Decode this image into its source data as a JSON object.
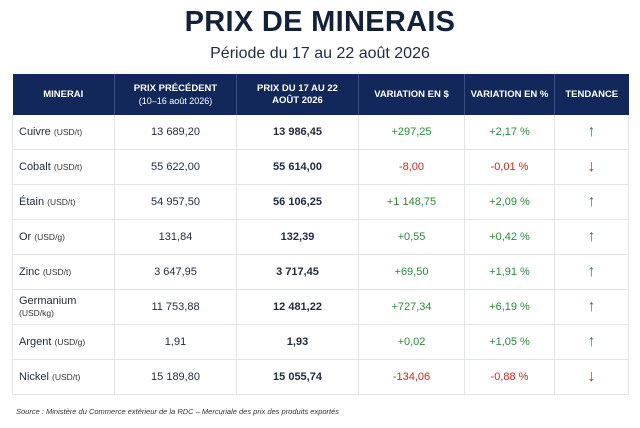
{
  "title": "PRIX DE MINERAIS",
  "subtitle": "Période du 17 au 22 août 2026",
  "headers": {
    "mineral": "MINERAI",
    "previous": "PRIX PRÉCÉDENT",
    "previous_sub": "(10–16 août 2026)",
    "current_line1": "PRIX DU 17 AU 22",
    "current_line2": "AOÛT 2026",
    "var_abs": "VARIATION EN $",
    "var_pct": "VARIATION EN %",
    "trend": "TENDANCE"
  },
  "rows": [
    {
      "name": "Cuivre",
      "unit": "(USD/t)",
      "previous": "13 689,20",
      "current": "13 986,45",
      "var_abs": "+297,25",
      "var_pct": "+2,17 %",
      "trend": "up",
      "trend_icon": "↑"
    },
    {
      "name": "Cobalt",
      "unit": "(USD/t)",
      "previous": "55 622,00",
      "current": "55 614,00",
      "var_abs": "-8,00",
      "var_pct": "-0,01 %",
      "trend": "down",
      "trend_icon": "↓"
    },
    {
      "name": "Étain",
      "unit": "(USD/t)",
      "previous": "54 957,50",
      "current": "56 106,25",
      "var_abs": "+1 148,75",
      "var_pct": "+2,09 %",
      "trend": "up",
      "trend_icon": "↑"
    },
    {
      "name": "Or",
      "unit": "(USD/g)",
      "previous": "131,84",
      "current": "132,39",
      "var_abs": "+0,55",
      "var_pct": "+0,42 %",
      "trend": "up",
      "trend_icon": "↑"
    },
    {
      "name": "Zinc",
      "unit": "(USD/t)",
      "previous": "3 647,95",
      "current": "3 717,45",
      "var_abs": "+69,50",
      "var_pct": "+1,91 %",
      "trend": "up",
      "trend_icon": "↑"
    },
    {
      "name": "Germanium",
      "unit": "(USD/kg)",
      "previous": "11 753,88",
      "current": "12 481,22",
      "var_abs": "+727,34",
      "var_pct": "+6,19 %",
      "trend": "up",
      "trend_icon": "↑"
    },
    {
      "name": "Argent",
      "unit": "(USD/g)",
      "previous": "1,91",
      "current": "1,93",
      "var_abs": "+0,02",
      "var_pct": "+1,05 %",
      "trend": "up",
      "trend_icon": "↑"
    },
    {
      "name": "Nickel",
      "unit": "(USD/t)",
      "previous": "15 189,80",
      "current": "15 055,74",
      "var_abs": "-134,06",
      "var_pct": "-0,88 %",
      "trend": "down",
      "trend_icon": "↓"
    }
  ],
  "source": "Source : Ministère du Commerce extérieur de la RDC – Mercuriale des prix des produits exportés",
  "colors": {
    "header_bg": "#13285a",
    "positive": "#2a8a3a",
    "negative": "#c8281e"
  }
}
